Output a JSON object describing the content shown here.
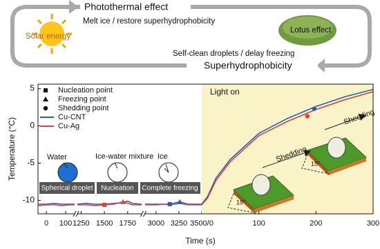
{
  "diagram": {
    "top_arrow_label": "Photothermal effect",
    "top_caption": "Melt ice / restore superhydrophobicity",
    "left_label": "Solar energy",
    "right_label": "Lotus effect",
    "bottom_caption": "Self-clean droplets / delay freezing",
    "bottom_arrow_label": "Superhydrophobicity"
  },
  "inset": {
    "states": [
      {
        "label": "Water",
        "caption": "Spherical droplet"
      },
      {
        "label": "Ice-water mixture",
        "caption": "Nucleation"
      },
      {
        "label": "Ice",
        "caption": "Complete freezing"
      }
    ]
  },
  "chart_data": {
    "type": "line",
    "ylabel": "Temperature (°C)",
    "xlabel": "Time (s)",
    "ylim": [
      -11.8,
      5.6
    ],
    "yticks": [
      5,
      0,
      -5,
      -10
    ],
    "light_label": "Light on",
    "light_color": "#fbf3c8",
    "shedding": [
      {
        "label": "Shedding",
        "angle": "15°"
      },
      {
        "label": "Shedding",
        "angle": "15°"
      }
    ],
    "legend_markers": [
      {
        "name": "Nucleation point",
        "shape": "square"
      },
      {
        "name": "Freezing point",
        "shape": "triangle"
      },
      {
        "name": "Shedding point",
        "shape": "circle"
      }
    ],
    "series": [
      {
        "name": "Cu-CNT",
        "color": "#1f5fbf"
      },
      {
        "name": "Cu-Ag",
        "color": "#e0403a"
      }
    ],
    "panels": [
      {
        "xlim": [
          -43,
          146
        ],
        "xticks": [
          0,
          100
        ],
        "light": false,
        "series": [
          {
            "x": [
              -40,
              0,
              40,
              80,
              120,
              146
            ],
            "values": [
              -10.5,
              -10.5,
              -10.4,
              -10.5,
              -10.5,
              -10.5
            ]
          },
          {
            "x": [
              -40,
              0,
              40,
              80,
              120,
              146
            ],
            "values": [
              -10.7,
              -10.6,
              -10.6,
              -10.7,
              -10.6,
              -10.6
            ]
          }
        ],
        "markers": []
      },
      {
        "xlim": [
          1210,
          1900
        ],
        "xticks": [
          1250,
          1500,
          1750
        ],
        "light": false,
        "series": [
          {
            "x": [
              1210,
              1300,
              1400,
              1500,
              1600,
              1700,
              1750,
              1800,
              1900
            ],
            "values": [
              -10.5,
              -10.4,
              -10.5,
              -10.5,
              -10.4,
              -10.3,
              -10.1,
              -10.4,
              -10.5
            ]
          },
          {
            "x": [
              1210,
              1300,
              1400,
              1500,
              1600,
              1700,
              1750,
              1800,
              1900
            ],
            "values": [
              -10.6,
              -10.6,
              -10.7,
              -10.6,
              -10.5,
              -10.2,
              -10.4,
              -10.6,
              -10.6
            ]
          }
        ],
        "markers": [
          {
            "shape": "square",
            "x": 1500,
            "y": -10.6,
            "color": "#e0403a"
          },
          {
            "shape": "triangle",
            "x": 1700,
            "y": -10.2,
            "color": "#e0403a"
          }
        ]
      },
      {
        "xlim": [
          2880,
          3500
        ],
        "xticks": [
          3000,
          3250,
          {
            "value": 3500,
            "label": "3500/0"
          }
        ],
        "light": false,
        "series": [
          {
            "x": [
              2880,
              3000,
              3100,
              3150,
              3260,
              3350,
              3500
            ],
            "values": [
              -10.5,
              -10.5,
              -10.5,
              -10.5,
              -10.2,
              -10.5,
              -10.5
            ]
          },
          {
            "x": [
              2880,
              3000,
              3100,
              3150,
              3260,
              3350,
              3500
            ],
            "values": [
              -10.6,
              -10.6,
              -10.5,
              -10.6,
              -10.4,
              -10.6,
              -10.6
            ]
          }
        ],
        "markers": [
          {
            "shape": "square",
            "x": 3150,
            "y": -10.5,
            "color": "#1f5fbf"
          },
          {
            "shape": "triangle",
            "x": 3260,
            "y": -10.2,
            "color": "#1f5fbf"
          }
        ]
      },
      {
        "xlim": [
          0,
          300
        ],
        "xticks": [
          100,
          200,
          300
        ],
        "light": true,
        "series": [
          {
            "x": [
              0,
              10,
              25,
              50,
              100,
              150,
              200,
              250,
              300
            ],
            "values": [
              -10.5,
              -9.5,
              -7,
              -4.5,
              -1,
              1,
              2.6,
              3.9,
              4.9
            ]
          },
          {
            "x": [
              0,
              10,
              25,
              50,
              100,
              150,
              200,
              250,
              300
            ],
            "values": [
              -10.6,
              -9.7,
              -7.3,
              -4.8,
              -1.3,
              0.6,
              2.2,
              3.5,
              4.6
            ]
          }
        ],
        "markers": [
          {
            "shape": "circle",
            "x": 185,
            "y": 1.3,
            "color": "#e0403a"
          },
          {
            "shape": "circle",
            "x": 197,
            "y": 2.3,
            "color": "#1f5fbf"
          }
        ]
      }
    ]
  }
}
